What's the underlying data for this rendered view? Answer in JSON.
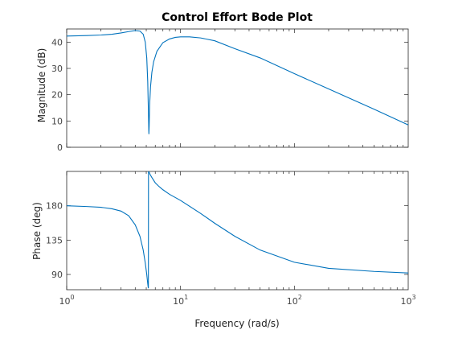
{
  "chart_data": [
    {
      "type": "line",
      "title": "Control Effort Bode Plot",
      "xlabel": "",
      "ylabel": "Magnitude (dB)",
      "xscale": "log",
      "xlim": [
        1,
        1000
      ],
      "ylim": [
        0,
        45
      ],
      "yticks": [
        0,
        10,
        20,
        30,
        40
      ],
      "grid": false,
      "series": [
        {
          "color": "#0072BD",
          "x": [
            1,
            1.5,
            2,
            2.5,
            3,
            3.5,
            4,
            4.4,
            4.7,
            4.9,
            5.05,
            5.15,
            5.22,
            5.27,
            5.3,
            5.35,
            5.45,
            5.6,
            5.8,
            6.2,
            7,
            8,
            9,
            10,
            12,
            15,
            20,
            30,
            50,
            100,
            200,
            500,
            1000
          ],
          "y": [
            42.3,
            42.5,
            42.7,
            43.0,
            43.5,
            44.0,
            44.4,
            44.2,
            43.0,
            40.0,
            34.0,
            25.0,
            14.0,
            5.0,
            8.0,
            16.0,
            23.0,
            28.5,
            32.5,
            36.5,
            39.8,
            41.2,
            41.8,
            42.0,
            42.0,
            41.6,
            40.5,
            37.5,
            34.0,
            28.0,
            22.2,
            14.5,
            8.5
          ]
        }
      ]
    },
    {
      "type": "line",
      "title": "",
      "xlabel": "Frequency (rad/s)",
      "ylabel": "Phase (deg)",
      "xscale": "log",
      "xlim": [
        1,
        1000
      ],
      "ylim": [
        70,
        225
      ],
      "yticks": [
        90,
        135,
        180
      ],
      "xtick_labels": [
        "10^0",
        "10^1",
        "10^2",
        "10^3"
      ],
      "grid": false,
      "series": [
        {
          "color": "#0072BD",
          "x": [
            1,
            1.5,
            2,
            2.5,
            3,
            3.5,
            4,
            4.4,
            4.7,
            4.9,
            5.05,
            5.15,
            5.2,
            5.22,
            5.23,
            5.25,
            5.3,
            5.4,
            5.6,
            6,
            6.5,
            7,
            8,
            10,
            15,
            20,
            30,
            50,
            100,
            200,
            500,
            1000
          ],
          "y": [
            180,
            179,
            178,
            176,
            173,
            167,
            155,
            140,
            122,
            105,
            90,
            78,
            73,
            72,
            225,
            225,
            224,
            221,
            217,
            210,
            205,
            201,
            195,
            187,
            170,
            157,
            140,
            122,
            106,
            98,
            94,
            92
          ]
        }
      ]
    }
  ]
}
